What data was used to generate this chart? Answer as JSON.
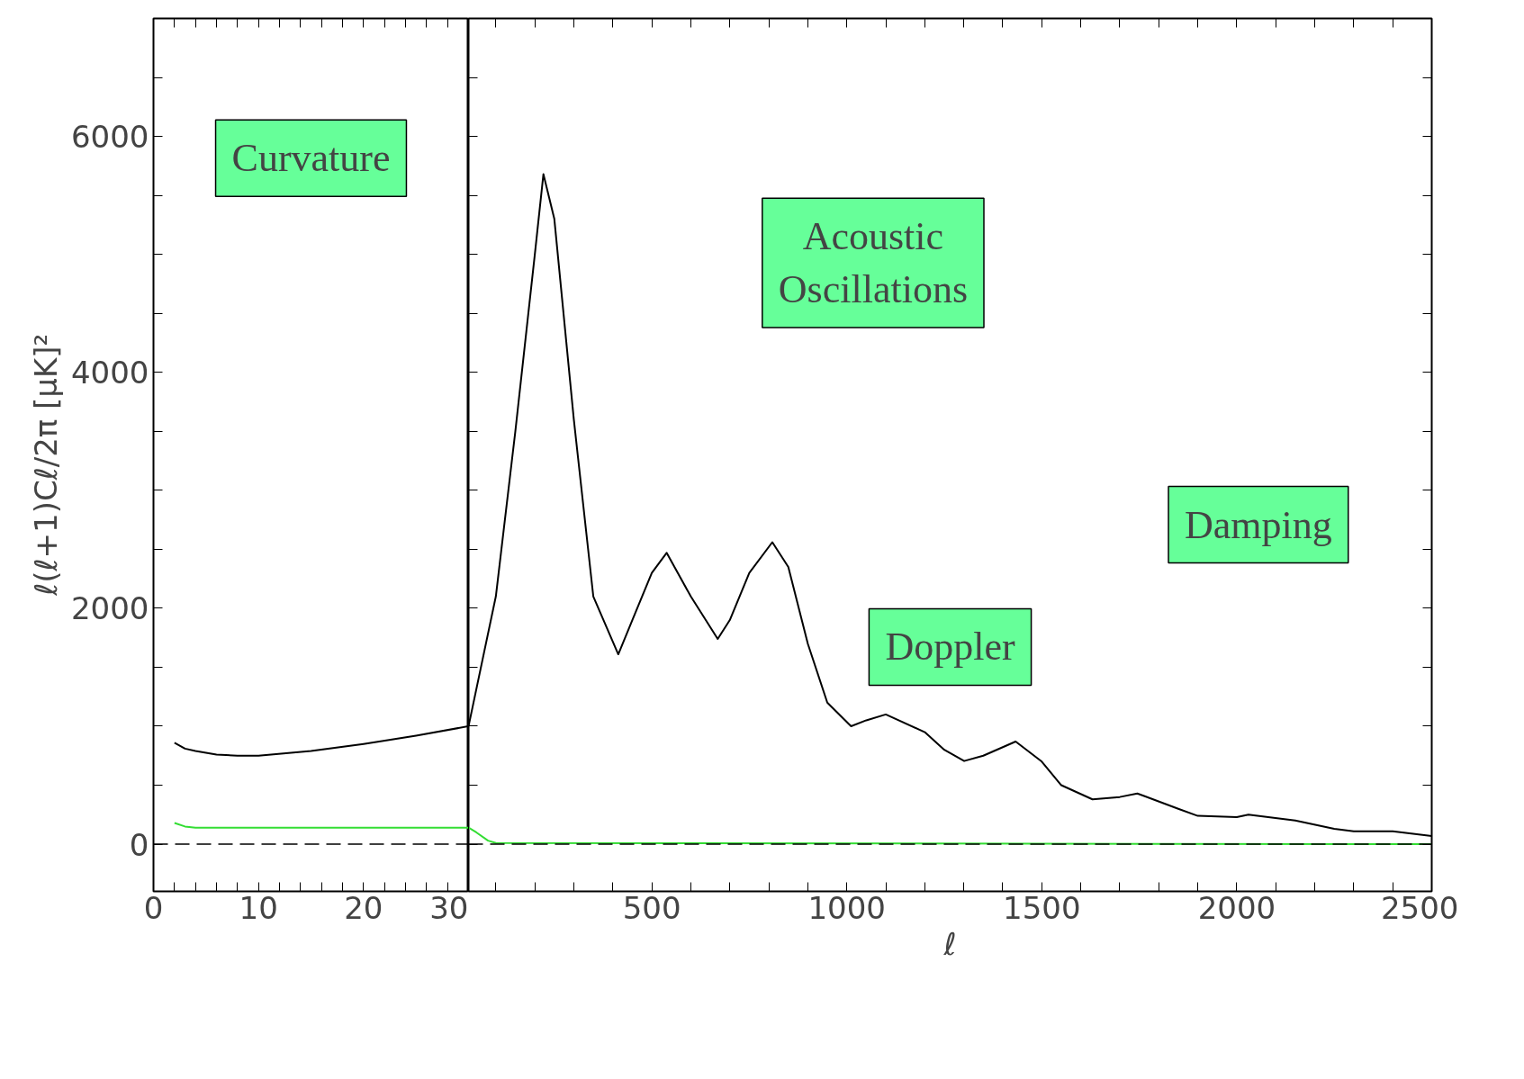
{
  "chart_data": [
    {
      "type": "line",
      "ylabel": "ℓ(ℓ+1)Cℓ/2π   [μK]²",
      "xlim": [
        0,
        30
      ],
      "ylim": [
        -400,
        7000
      ],
      "xticks": [
        0,
        {
          "value": 2,
          "label": null
        },
        {
          "value": 4,
          "label": null
        },
        {
          "value": 6,
          "label": null
        },
        {
          "value": 8,
          "label": null
        },
        10,
        {
          "value": 12,
          "label": null
        },
        {
          "value": 14,
          "label": null
        },
        {
          "value": 16,
          "label": null
        },
        {
          "value": 18,
          "label": null
        },
        20,
        {
          "value": 22,
          "label": null
        },
        {
          "value": 24,
          "label": null
        },
        {
          "value": 26,
          "label": null
        },
        {
          "value": 28,
          "label": null
        },
        30
      ],
      "yticks": [
        0,
        {
          "value": 500,
          "label": null
        },
        {
          "value": 1000,
          "label": null
        },
        {
          "value": 1500,
          "label": null
        },
        2000,
        {
          "value": 2500,
          "label": null
        },
        {
          "value": 3000,
          "label": null
        },
        {
          "value": 3500,
          "label": null
        },
        4000,
        {
          "value": 4500,
          "label": null
        },
        {
          "value": 5000,
          "label": null
        },
        {
          "value": 5500,
          "label": null
        },
        6000,
        {
          "value": 6500,
          "label": null
        }
      ],
      "grid": false,
      "series": [
        {
          "color": "#000000",
          "x": [
            2,
            3,
            4,
            6,
            8,
            10,
            15,
            20,
            25,
            30
          ],
          "values": [
            860,
            810,
            790,
            760,
            750,
            750,
            790,
            850,
            920,
            1000
          ]
        },
        {
          "color": "#33dd33",
          "x": [
            2,
            3,
            4,
            10,
            20,
            30
          ],
          "values": [
            180,
            150,
            140,
            140,
            140,
            140
          ]
        }
      ],
      "ref_lines": [
        {
          "axis": "y",
          "value": 0,
          "line_style": "dashed",
          "color": "#000000"
        }
      ],
      "annotations": [
        "Curvature"
      ]
    },
    {
      "type": "line",
      "xlabel": "ℓ",
      "xlim": [
        30,
        2500
      ],
      "ylim": [
        -400,
        7000
      ],
      "tick_labels": "x",
      "xticks": [
        {
          "value": 100,
          "label": null
        },
        {
          "value": 200,
          "label": null
        },
        {
          "value": 300,
          "label": null
        },
        {
          "value": 400,
          "label": null
        },
        500,
        {
          "value": 600,
          "label": null
        },
        {
          "value": 700,
          "label": null
        },
        {
          "value": 800,
          "label": null
        },
        {
          "value": 900,
          "label": null
        },
        1000,
        {
          "value": 1100,
          "label": null
        },
        {
          "value": 1200,
          "label": null
        },
        {
          "value": 1300,
          "label": null
        },
        {
          "value": 1400,
          "label": null
        },
        1500,
        {
          "value": 1600,
          "label": null
        },
        {
          "value": 1700,
          "label": null
        },
        {
          "value": 1800,
          "label": null
        },
        {
          "value": 1900,
          "label": null
        },
        2000,
        {
          "value": 2100,
          "label": null
        },
        {
          "value": 2200,
          "label": null
        },
        {
          "value": 2300,
          "label": null
        },
        {
          "value": 2400,
          "label": null
        },
        2500
      ],
      "yticks": [
        0,
        {
          "value": 500,
          "label": null
        },
        {
          "value": 1000,
          "label": null
        },
        {
          "value": 1500,
          "label": null
        },
        2000,
        {
          "value": 2500,
          "label": null
        },
        {
          "value": 3000,
          "label": null
        },
        {
          "value": 3500,
          "label": null
        },
        4000,
        {
          "value": 4500,
          "label": null
        },
        {
          "value": 5000,
          "label": null
        },
        {
          "value": 5500,
          "label": null
        },
        6000,
        {
          "value": 6500,
          "label": null
        }
      ],
      "grid": false,
      "series": [
        {
          "color": "#000000",
          "x": [
            30,
            100,
            150,
            200,
            222,
            250,
            300,
            350,
            414,
            450,
            500,
            538,
            600,
            669,
            700,
            750,
            809,
            850,
            900,
            950,
            1011,
            1050,
            1100,
            1200,
            1250,
            1301,
            1350,
            1433,
            1500,
            1550,
            1630,
            1700,
            1745,
            1850,
            1900,
            2000,
            2030,
            2150,
            2250,
            2300,
            2400,
            2500
          ],
          "values": [
            1000,
            2100,
            3500,
            5000,
            5680,
            5300,
            3600,
            2100,
            1610,
            1900,
            2300,
            2470,
            2100,
            1740,
            1900,
            2300,
            2560,
            2350,
            1700,
            1200,
            1000,
            1050,
            1100,
            950,
            800,
            705,
            750,
            870,
            700,
            500,
            380,
            400,
            430,
            300,
            240,
            230,
            250,
            200,
            130,
            110,
            110,
            70
          ]
        },
        {
          "color": "#33dd33",
          "x": [
            30,
            50,
            80,
            100,
            2500
          ],
          "values": [
            140,
            100,
            30,
            10,
            0
          ]
        }
      ],
      "ref_lines": [
        {
          "axis": "y",
          "value": 0,
          "line_style": "dashed",
          "color": "#000000"
        }
      ],
      "annotations": [
        "Acoustic\nOscillations",
        "Doppler",
        "Damping"
      ]
    }
  ]
}
